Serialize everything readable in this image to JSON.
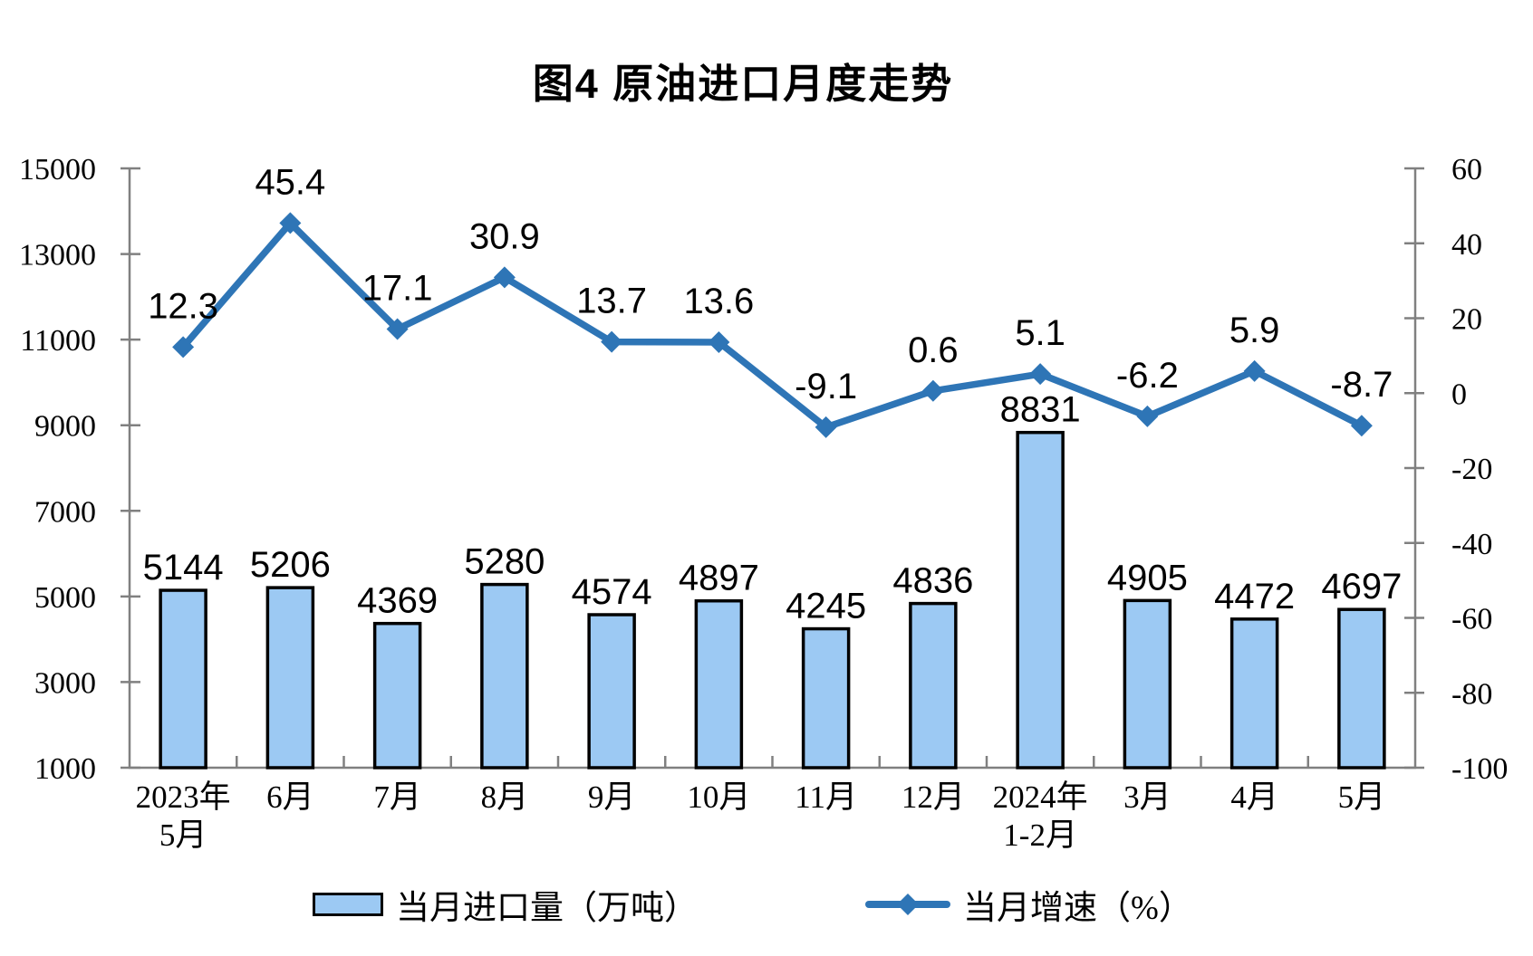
{
  "title": "图4 原油进口月度走势",
  "legend": {
    "items": [
      {
        "label": "当月进口量（万吨）",
        "swatch": "bar"
      },
      {
        "label": "当月增速（%）",
        "swatch": "line-diamond"
      }
    ]
  },
  "colors": {
    "background": "#FFFFFF",
    "bar_fill": "#9CC9F3",
    "bar_border": "#000000",
    "line": "#2E75B6",
    "axis_line": "#808080",
    "text": "#000000"
  },
  "chart_data": {
    "type": "combo-bar-line",
    "title": "图4 原油进口月度走势",
    "categories": [
      "2023年\n5月",
      "6月",
      "7月",
      "8月",
      "9月",
      "10月",
      "11月",
      "12月",
      "2024年\n1-2月",
      "3月",
      "4月",
      "5月"
    ],
    "series": [
      {
        "name": "当月进口量（万吨）",
        "type": "bar",
        "yaxis": "left",
        "values": [
          5144,
          5206,
          4369,
          5280,
          4574,
          4897,
          4245,
          4836,
          8831,
          4905,
          4472,
          4697
        ]
      },
      {
        "name": "当月增速（%）",
        "type": "line",
        "yaxis": "right",
        "marker": "diamond",
        "values": [
          12.3,
          45.4,
          17.1,
          30.9,
          13.7,
          13.6,
          -9.1,
          0.6,
          5.1,
          -6.2,
          5.9,
          -8.7
        ]
      }
    ],
    "left_axis": {
      "min": 1000,
      "max": 15000,
      "ticks": [
        1000,
        3000,
        5000,
        7000,
        9000,
        11000,
        13000,
        15000
      ]
    },
    "right_axis": {
      "min": -100,
      "max": 60,
      "ticks": [
        -100,
        -80,
        -60,
        -40,
        -20,
        0,
        20,
        40,
        60
      ]
    },
    "grid": false,
    "data_labels": true,
    "legend_position": "bottom"
  }
}
